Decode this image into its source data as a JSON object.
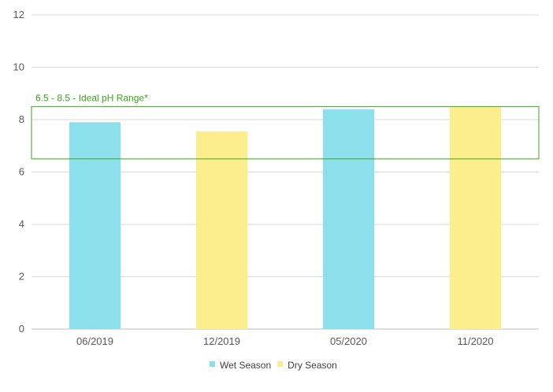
{
  "chart_data": {
    "type": "bar",
    "title": "",
    "xlabel": "",
    "ylabel": "",
    "categories": [
      "06/2019",
      "12/2019",
      "05/2020",
      "11/2020"
    ],
    "values": [
      7.9,
      7.55,
      8.4,
      8.5
    ],
    "series_by_bar": [
      "Wet Season",
      "Dry Season",
      "Wet Season",
      "Dry Season"
    ],
    "legend": [
      {
        "name": "Wet Season",
        "color": "#8be0ec"
      },
      {
        "name": "Dry Season",
        "color": "#fcee8c"
      }
    ],
    "ylim": [
      0,
      12
    ],
    "yticks": [
      0,
      2,
      4,
      6,
      8,
      10,
      12
    ],
    "grid": true,
    "legend_position": "bottom",
    "reference_band": {
      "label": "6.5 - 8.5 - Ideal pH Range*",
      "low": 6.5,
      "high": 8.5,
      "color": "#3aa51c"
    }
  }
}
